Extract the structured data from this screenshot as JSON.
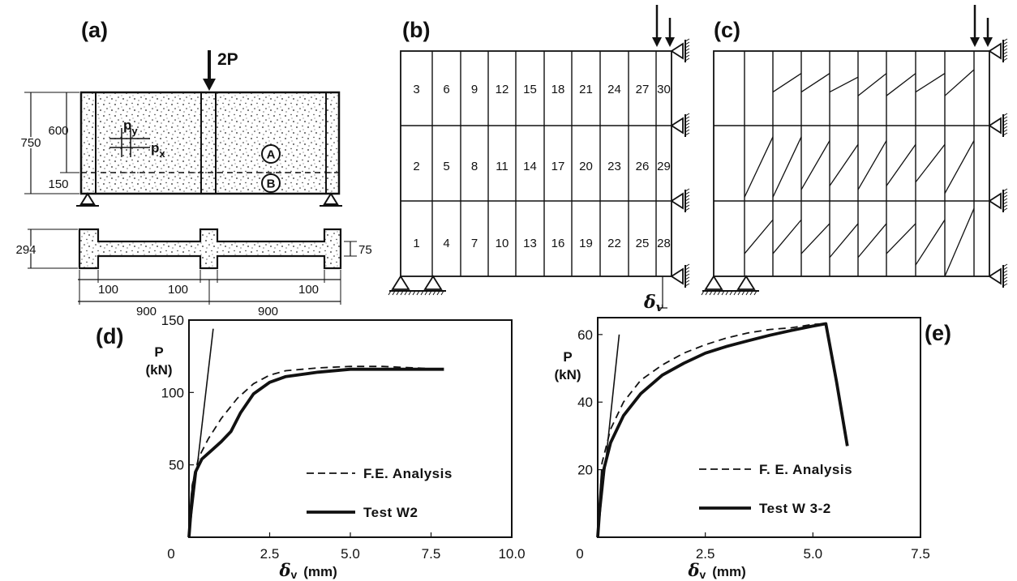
{
  "panels": {
    "a": {
      "label": "(a)",
      "load_label": "2P",
      "rebar": [
        "p",
        "y",
        "p",
        "x"
      ],
      "zones": [
        "A",
        "B"
      ],
      "dims": {
        "h_total": "750",
        "h_upper": "600",
        "h_lower": "150",
        "section_depth": "294",
        "flange": "75",
        "w_left": "100",
        "w_mid": "100",
        "w_right": "100",
        "span_left": "900",
        "span_right": "900"
      }
    },
    "b": {
      "label": "(b)",
      "element_numbers": [
        "1",
        "2",
        "3",
        "4",
        "5",
        "6",
        "7",
        "8",
        "9",
        "10",
        "11",
        "12",
        "13",
        "14",
        "15",
        "16",
        "17",
        "18",
        "19",
        "20",
        "21",
        "22",
        "23",
        "24",
        "25",
        "26",
        "27",
        "28",
        "29",
        "30"
      ],
      "disp_label_main": "δ",
      "disp_label_sub": "v"
    },
    "c": {
      "label": "(c)"
    },
    "d": {
      "label": "(d)"
    },
    "e": {
      "label": "(e)"
    }
  },
  "colors": {
    "ink": "#111111",
    "background": "#ffffff"
  },
  "chart_data": [
    {
      "type": "line",
      "panel": "d",
      "ylabel": "P (kN)",
      "xlabel": "δv (mm)",
      "xlim": [
        0,
        10
      ],
      "ylim": [
        0,
        150
      ],
      "xticks": [
        "0",
        "2.5",
        "5.0",
        "7.5",
        "10.0"
      ],
      "yticks": [
        "50",
        "100",
        "150"
      ],
      "series": [
        {
          "name": "F.E. Analysis",
          "style": "dashed",
          "x": [
            0,
            0.1,
            0.3,
            0.6,
            1.0,
            1.5,
            2.0,
            2.5,
            3.0,
            4.0,
            5.0,
            6.0,
            7.0,
            7.8
          ],
          "y": [
            0,
            36,
            55,
            68,
            82,
            96,
            106,
            112,
            115,
            117,
            118,
            118,
            117,
            116
          ]
        },
        {
          "name": "Test W2",
          "style": "solid",
          "x": [
            0,
            0.1,
            0.2,
            0.4,
            0.7,
            1.0,
            1.3,
            1.6,
            2.0,
            2.5,
            3.0,
            4.0,
            5.0,
            6.0,
            7.0,
            7.9
          ],
          "y": [
            0,
            30,
            45,
            54,
            60,
            66,
            73,
            86,
            99,
            107,
            111,
            114,
            116,
            116,
            116,
            116
          ]
        },
        {
          "name": "",
          "style": "solid",
          "x": [
            0,
            0.75
          ],
          "y": [
            0,
            144
          ]
        }
      ]
    },
    {
      "type": "line",
      "panel": "e",
      "ylabel": "P (kN)",
      "xlabel": "δv (mm)",
      "xlim": [
        0,
        7.5
      ],
      "ylim": [
        0,
        65
      ],
      "xticks": [
        "0",
        "2.5",
        "5.0",
        "7.5"
      ],
      "yticks": [
        "20",
        "40",
        "60"
      ],
      "series": [
        {
          "name": "F. E. Analysis",
          "style": "dashed",
          "x": [
            0,
            0.1,
            0.3,
            0.6,
            1.0,
            1.5,
            2.0,
            2.5,
            3.0,
            3.5,
            4.0,
            4.5,
            5.0,
            5.3
          ],
          "y": [
            0,
            22,
            32,
            40,
            46.5,
            51,
            54.5,
            57,
            59,
            60.5,
            61.5,
            62,
            63,
            63.2
          ]
        },
        {
          "name": "Test W 3-2",
          "style": "solid",
          "x": [
            0,
            0.1,
            0.3,
            0.6,
            1.0,
            1.5,
            2.0,
            2.5,
            3.0,
            3.5,
            4.0,
            4.5,
            5.0,
            5.3,
            5.55,
            5.8
          ],
          "y": [
            0,
            18,
            28,
            36,
            42.5,
            48,
            51.5,
            54.5,
            56.5,
            58.2,
            59.8,
            61.2,
            62.5,
            63.2,
            46,
            27
          ]
        },
        {
          "name": "",
          "style": "solid",
          "x": [
            0,
            0.5
          ],
          "y": [
            0,
            60
          ]
        }
      ]
    }
  ]
}
